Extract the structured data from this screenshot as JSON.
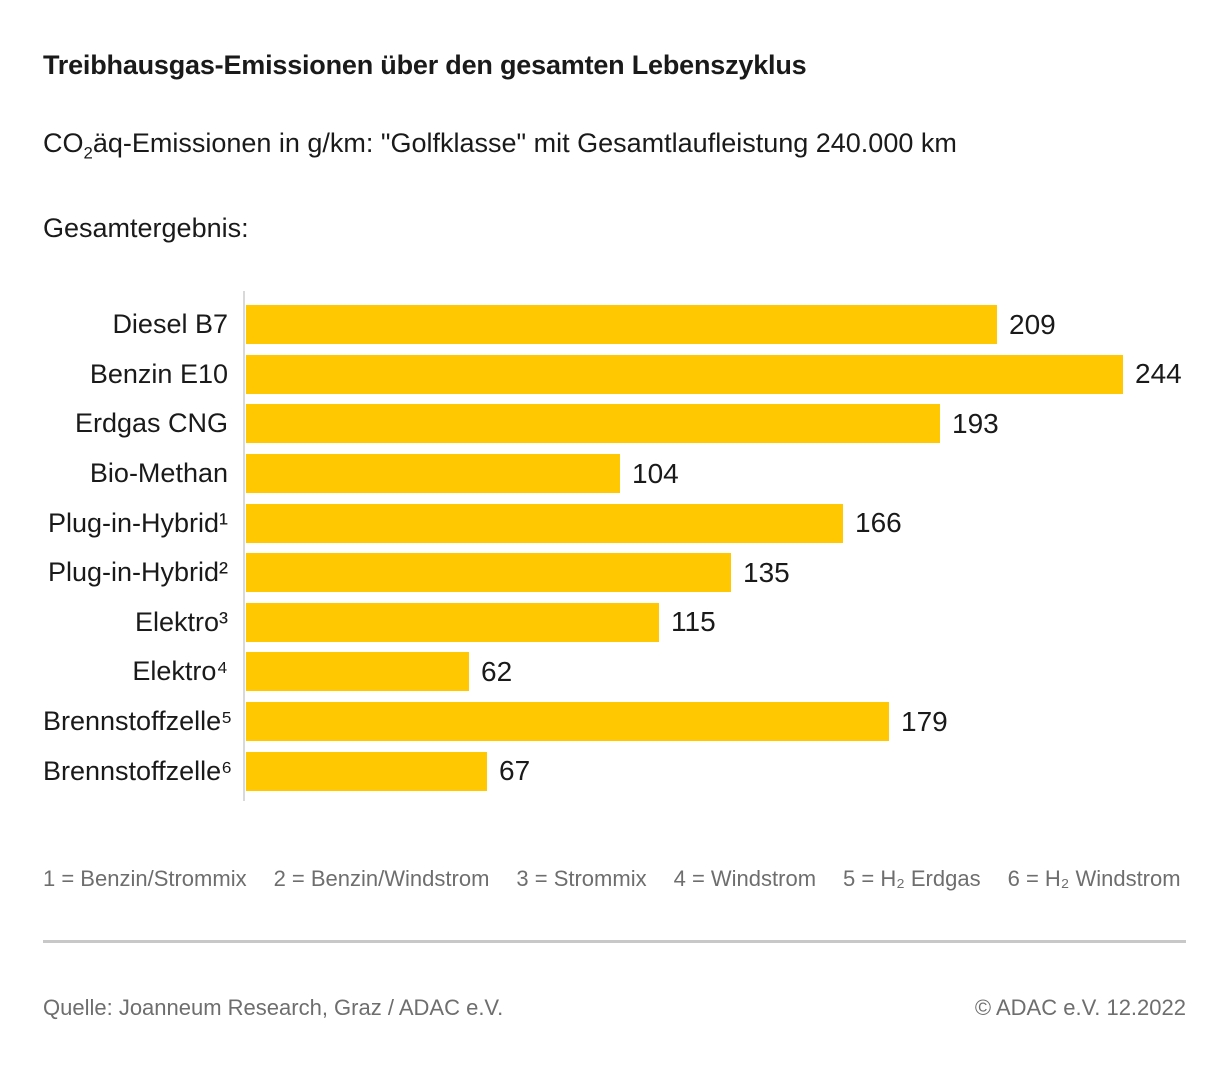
{
  "page": {
    "title": "Treibhausgas-Emissionen über den gesamten Lebenszyklus",
    "subtitle_prefix": "CO",
    "subtitle_subscript": "2",
    "subtitle_rest": "äq-Emissionen in g/km: \"Golfklasse\" mit Gesamtlaufleistung 240.000 km",
    "section_label": "Gesamtergebnis:"
  },
  "chart_data": {
    "type": "bar",
    "orientation": "horizontal",
    "title": "Gesamtergebnis:",
    "categories": [
      "Diesel B7",
      "Benzin E10",
      "Erdgas CNG",
      "Bio-Methan",
      "Plug-in-Hybrid¹",
      "Plug-in-Hybrid²",
      "Elektro³",
      "Elektro⁴",
      "Brennstoffzelle⁵",
      "Brennstoffzelle⁶"
    ],
    "values": [
      209,
      244,
      193,
      104,
      166,
      135,
      115,
      62,
      179,
      67
    ],
    "value_labels_shown": true,
    "xlim": [
      0,
      250
    ],
    "grid": false,
    "legend": "none",
    "bar_color": "#FFC800"
  },
  "footnotes": [
    "1 = Benzin/Strommix",
    "2 = Benzin/Windstrom",
    "3 = Strommix",
    "4 = Windstrom",
    "5 = H₂ Erdgas",
    "6 = H₂ Windstrom"
  ],
  "footer": {
    "source": "Quelle: Joanneum Research, Graz / ADAC e.V.",
    "copyright": "© ADAC e.V. 12.2022"
  },
  "colors": {
    "bar": "#FFC800",
    "text": "#1a1a1a",
    "muted_text": "#6e6e6e",
    "divider": "#c8c8c8",
    "axis": "#d9d9d9"
  }
}
